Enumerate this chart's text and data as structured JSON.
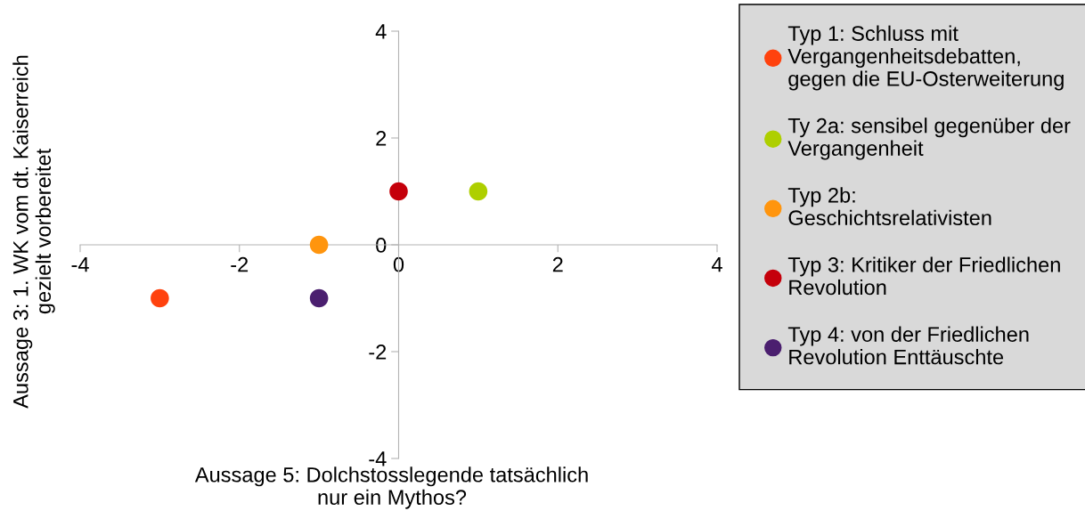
{
  "chart_data": {
    "type": "scatter",
    "xlabel": "Aussage 5: Dolchstosslegende tatsächlich\nnur ein Mythos?",
    "ylabel": "Aussage 3: 1. WK vom dt. Kaiserreich\ngezielt vorbereitet",
    "xlim": [
      -4,
      4
    ],
    "ylim": [
      -4,
      4
    ],
    "xticks": [
      -4,
      -2,
      0,
      2,
      4
    ],
    "yticks": [
      -4,
      -2,
      0,
      2,
      4
    ],
    "grid": false,
    "legend": "right",
    "marker": "circle",
    "series": [
      {
        "name": "Typ 1: Schluss mit\nVergangenheitsdebatten,\ngegen die EU-Osterweiterung",
        "color": "#ff420e",
        "x": [
          -3
        ],
        "values": [
          -1
        ]
      },
      {
        "name": "Ty 2a: sensibel gegenüber der\nVergangenheit",
        "color": "#aecf00",
        "x": [
          1
        ],
        "values": [
          1
        ]
      },
      {
        "name": "Typ 2b:\nGeschichtsrelativisten",
        "color": "#ff950e",
        "x": [
          -1
        ],
        "values": [
          0
        ]
      },
      {
        "name": "Typ 3: Kritiker der Friedlichen\nRevolution",
        "color": "#c5000b",
        "x": [
          0
        ],
        "values": [
          1
        ]
      },
      {
        "name": "Typ 4: von der Friedlichen\nRevolution Enttäuschte",
        "color": "#4b1f6f",
        "x": [
          -1
        ],
        "values": [
          -1
        ]
      }
    ]
  }
}
